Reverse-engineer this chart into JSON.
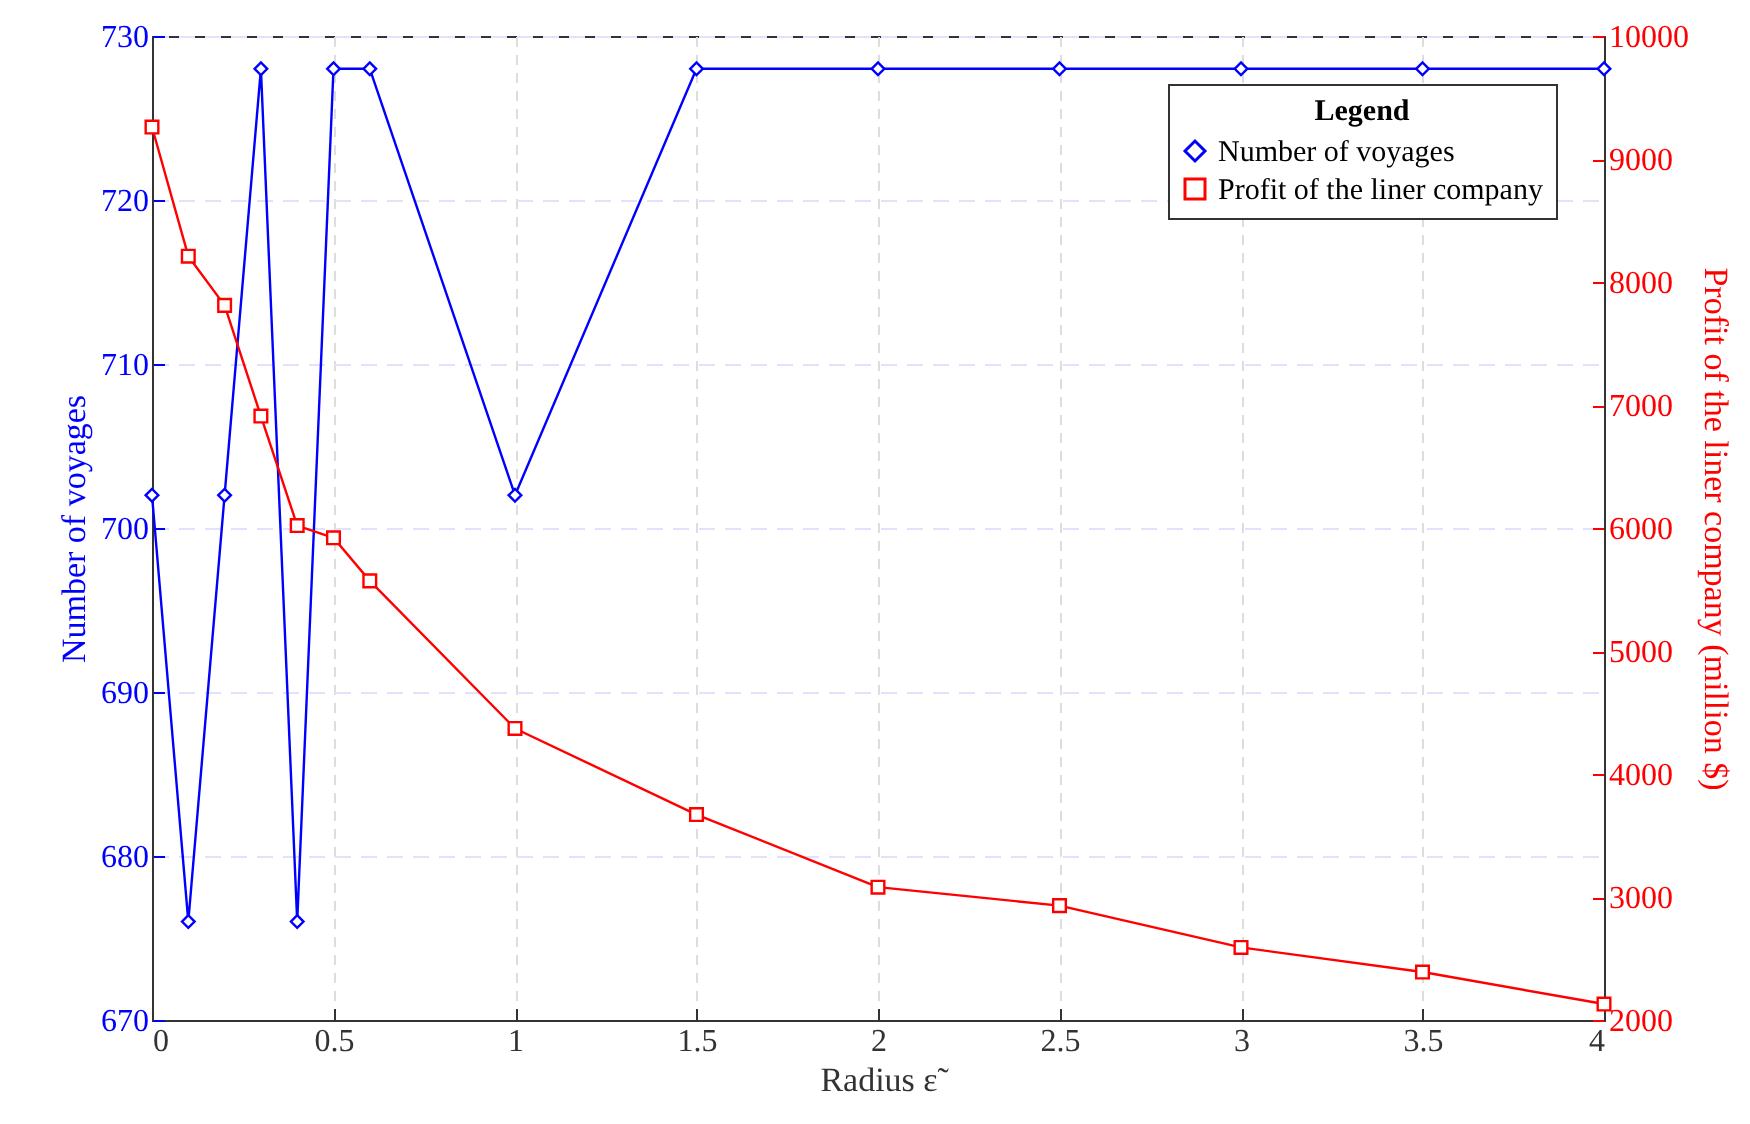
{
  "chart_data": {
    "type": "line",
    "xlabel": "Radius ε̃",
    "ylabel": "Number of voyages",
    "y2label": "Profit of the liner company (million $)",
    "legend_title": "Legend",
    "legend": "top right",
    "grid": true,
    "line_style": "solid",
    "x": [
      0,
      0.1,
      0.2,
      0.3,
      0.4,
      0.5,
      0.6,
      1,
      1.5,
      2,
      2.5,
      3,
      3.5,
      4
    ],
    "series": [
      {
        "name": "Number of voyages",
        "color": "#0000ff",
        "marker": "diamond",
        "values": [
          702,
          676,
          702,
          728,
          676,
          728,
          728,
          702,
          728,
          728,
          728,
          728,
          728,
          728
        ]
      },
      {
        "name": "Profit of the liner company",
        "color": "#ff0000",
        "marker": "square",
        "axis": "y2",
        "values": [
          9260,
          8210,
          7810,
          6910,
          6020,
          5920,
          5570,
          4370,
          3670,
          3080,
          2930,
          2590,
          2390,
          2130
        ]
      }
    ],
    "xlim": [
      0,
      4
    ],
    "xticks": [
      0,
      0.5,
      1,
      1.5,
      2,
      2.5,
      3,
      3.5,
      4
    ],
    "ylim": [
      670,
      730
    ],
    "yticks": [
      670,
      680,
      690,
      700,
      710,
      720,
      730
    ],
    "y2lim": [
      2000,
      10000
    ],
    "y2ticks": [
      2000,
      3000,
      4000,
      5000,
      6000,
      7000,
      8000,
      9000,
      10000
    ]
  }
}
